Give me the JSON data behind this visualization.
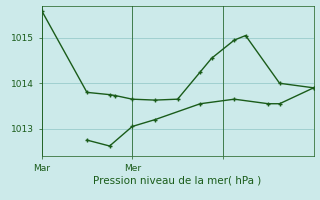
{
  "title": "Pression niveau de la mer( hPa )",
  "bg_color": "#cceaea",
  "line_color": "#1a5c1a",
  "grid_color": "#99cccc",
  "ylim": [
    1012.4,
    1015.7
  ],
  "yticks": [
    1013,
    1014,
    1015
  ],
  "xlim": [
    0,
    24
  ],
  "x_tick_positions": [
    0,
    8,
    16
  ],
  "x_tick_labels": [
    "Mar",
    "Mer",
    ""
  ],
  "series1_x": [
    0,
    4,
    6,
    6.5,
    8,
    10,
    12,
    14,
    15,
    17,
    18,
    21,
    24
  ],
  "series1_y": [
    1015.6,
    1013.8,
    1013.75,
    1013.73,
    1013.65,
    1013.63,
    1013.65,
    1014.25,
    1014.55,
    1014.95,
    1015.05,
    1014.0,
    1013.9
  ],
  "series2_x": [
    4,
    6,
    8,
    10,
    14,
    17,
    20,
    21,
    24
  ],
  "series2_y": [
    1012.75,
    1012.62,
    1013.05,
    1013.2,
    1013.55,
    1013.65,
    1013.55,
    1013.55,
    1013.9
  ],
  "marker_size": 3.5,
  "line_width": 1.0,
  "xlabel_fontsize": 7.5,
  "tick_fontsize": 6.5,
  "vline_positions": [
    0,
    8,
    16,
    24
  ]
}
